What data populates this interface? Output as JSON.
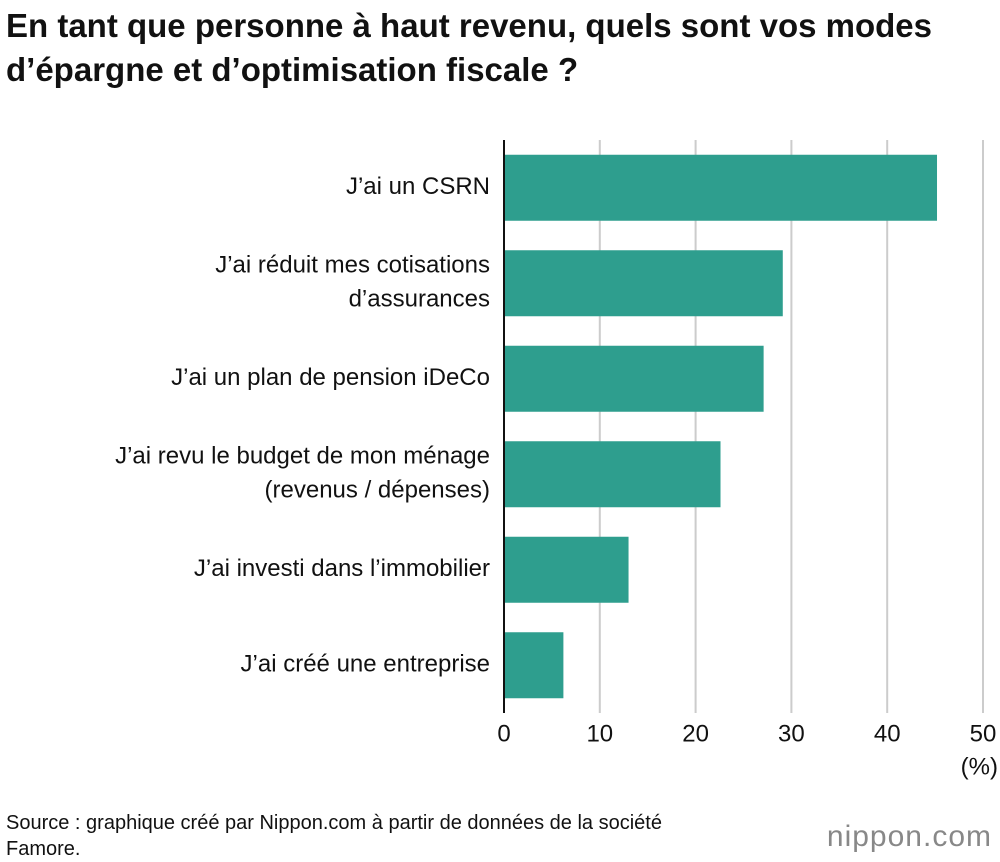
{
  "chart_data": {
    "type": "bar",
    "orientation": "horizontal",
    "title": "En tant que personne à haut revenu, quels sont vos modes d’épargne et d’optimisation fiscale ?",
    "categories": [
      [
        "J’ai un CSRN"
      ],
      [
        "J’ai réduit mes cotisations",
        "d’assurances"
      ],
      [
        "J’ai un plan de pension iDeCo"
      ],
      [
        "J’ai revu le budget de mon ménage",
        "(revenus / dépenses)"
      ],
      [
        "J’ai investi dans l’immobilier"
      ],
      [
        "J’ai créé une entreprise"
      ]
    ],
    "values": [
      45.2,
      29.1,
      27.1,
      22.6,
      13.0,
      6.2
    ],
    "color": "#2e9e8e",
    "xlim": [
      0,
      50
    ],
    "xticks": [
      0,
      10,
      20,
      30,
      40,
      50
    ],
    "x_label": "(%)",
    "grid": true,
    "source": "Source : graphique créé par Nippon.com à partir de données de la société Famore.",
    "logo": "nippon.com"
  }
}
